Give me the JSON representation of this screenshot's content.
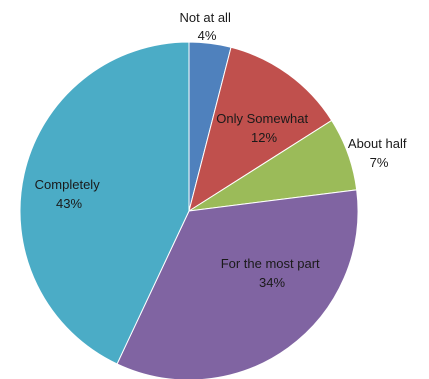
{
  "chart_data": {
    "type": "pie",
    "title": "",
    "start": "12 o'clock",
    "direction": "clockwise",
    "slices": [
      {
        "label": "Not at all",
        "value": 4,
        "value_label": "4%",
        "color": "#4f81bd"
      },
      {
        "label": "Only Somewhat",
        "value": 12,
        "value_label": "12%",
        "color": "#c0504d"
      },
      {
        "label": "About half",
        "value": 7,
        "value_label": "7%",
        "color": "#9bbb59"
      },
      {
        "label": "For the most part",
        "value": 34,
        "value_label": "34%",
        "color": "#8064a2"
      },
      {
        "label": "Completely",
        "value": 43,
        "value_label": "43%",
        "color": "#4bacc6"
      }
    ]
  }
}
